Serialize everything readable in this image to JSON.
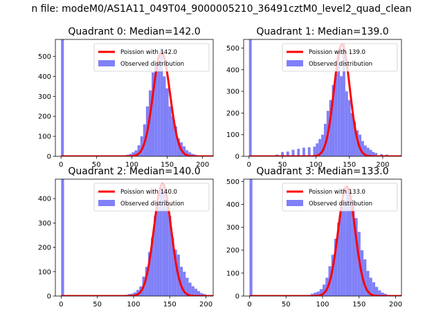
{
  "figure": {
    "suptitle": "n file: modeM0/AS1A11_049T04_9000005210_36491cztM0_level2_quad_clean"
  },
  "chart_data": [
    {
      "type": "bar",
      "title": "Quadrant 0: Median=142.0",
      "xlabel": "",
      "ylabel": "",
      "xlim": [
        -8,
        215
      ],
      "ylim": [
        0,
        585
      ],
      "xticks": [
        0,
        50,
        100,
        150,
        200
      ],
      "yticks": [
        0,
        100,
        200,
        300,
        400,
        500
      ],
      "legend_position": "top-right",
      "bar_color": "#8080f8",
      "bin_width": 4,
      "legend": {
        "poisson_label": "Poission with 142.0",
        "observed_label": "Observed distribution"
      },
      "poisson": {
        "lambda": 142.0,
        "peak": 522,
        "color": "#ff0000"
      },
      "histogram": {
        "x": [
          0,
          84,
          88,
          92,
          96,
          100,
          104,
          108,
          112,
          116,
          120,
          124,
          128,
          132,
          136,
          140,
          144,
          148,
          152,
          156,
          160,
          164,
          168,
          172,
          176,
          180,
          184,
          188,
          192,
          196,
          200,
          204
        ],
        "values": [
          585,
          2,
          3,
          8,
          12,
          20,
          30,
          55,
          100,
          160,
          250,
          330,
          420,
          460,
          480,
          540,
          400,
          340,
          250,
          200,
          150,
          90,
          70,
          50,
          30,
          20,
          12,
          8,
          5,
          3,
          2,
          1
        ]
      }
    },
    {
      "type": "bar",
      "title": "Quadrant 1: Median=139.0",
      "xlabel": "",
      "ylabel": "",
      "xlim": [
        -8,
        228
      ],
      "ylim": [
        0,
        540
      ],
      "xticks": [
        0,
        50,
        100,
        150,
        200
      ],
      "yticks": [
        0,
        100,
        200,
        300,
        400,
        500
      ],
      "legend_position": "top-right",
      "bar_color": "#8080f8",
      "bin_width": 4,
      "legend": {
        "poisson_label": "Poission with 139.0",
        "observed_label": "Observed distribution"
      },
      "poisson": {
        "lambda": 139.0,
        "peak": 517,
        "color": "#ff0000"
      },
      "histogram": {
        "x": [
          0,
          40,
          48,
          56,
          64,
          72,
          80,
          88,
          96,
          100,
          104,
          108,
          112,
          116,
          120,
          124,
          128,
          132,
          136,
          140,
          144,
          148,
          152,
          156,
          160,
          164,
          168,
          172,
          176,
          180,
          184,
          188,
          196,
          204,
          212,
          220
        ],
        "values": [
          540,
          8,
          20,
          22,
          30,
          35,
          40,
          42,
          45,
          60,
          80,
          100,
          150,
          210,
          260,
          330,
          380,
          480,
          370,
          520,
          300,
          260,
          200,
          160,
          120,
          100,
          70,
          50,
          40,
          30,
          20,
          15,
          10,
          8,
          5,
          3
        ]
      }
    },
    {
      "type": "bar",
      "title": "Quadrant 2: Median=140.0",
      "xlabel": "",
      "ylabel": "",
      "xlim": [
        -8,
        210
      ],
      "ylim": [
        0,
        480
      ],
      "xticks": [
        0,
        50,
        100,
        150,
        200
      ],
      "yticks": [
        0,
        100,
        200,
        300,
        400
      ],
      "legend_position": "top-right",
      "bar_color": "#8080f8",
      "bin_width": 4,
      "legend": {
        "poisson_label": "Poission with 140.0",
        "observed_label": "Observed distribution"
      },
      "poisson": {
        "lambda": 140.0,
        "peak": 461,
        "color": "#ff0000"
      },
      "histogram": {
        "x": [
          0,
          84,
          88,
          92,
          96,
          100,
          104,
          108,
          112,
          116,
          120,
          124,
          128,
          132,
          136,
          140,
          144,
          148,
          152,
          156,
          160,
          164,
          168,
          172,
          176,
          180,
          184,
          188,
          192,
          196,
          200
        ],
        "values": [
          480,
          3,
          5,
          8,
          10,
          15,
          25,
          40,
          80,
          120,
          180,
          240,
          330,
          380,
          450,
          460,
          400,
          330,
          240,
          190,
          170,
          120,
          100,
          75,
          55,
          40,
          30,
          20,
          12,
          8,
          4
        ]
      }
    },
    {
      "type": "bar",
      "title": "Quadrant 3: Median=133.0",
      "xlabel": "",
      "ylabel": "",
      "xlim": [
        -8,
        208
      ],
      "ylim": [
        0,
        510
      ],
      "xticks": [
        0,
        50,
        100,
        150,
        200
      ],
      "yticks": [
        0,
        100,
        200,
        300,
        400,
        500
      ],
      "legend_position": "top-right",
      "bar_color": "#8080f8",
      "bin_width": 4,
      "legend": {
        "poisson_label": "Poission with 133.0",
        "observed_label": "Observed distribution"
      },
      "poisson": {
        "lambda": 133.0,
        "peak": 478,
        "color": "#ff0000"
      },
      "histogram": {
        "x": [
          0,
          76,
          80,
          84,
          88,
          92,
          96,
          100,
          104,
          108,
          112,
          116,
          120,
          124,
          128,
          132,
          136,
          140,
          144,
          148,
          152,
          156,
          160,
          164,
          168,
          172,
          176,
          180,
          184,
          188,
          192
        ],
        "values": [
          510,
          3,
          5,
          10,
          15,
          20,
          30,
          50,
          80,
          130,
          180,
          250,
          320,
          390,
          420,
          470,
          460,
          420,
          340,
          280,
          200,
          160,
          110,
          80,
          60,
          40,
          25,
          15,
          10,
          5,
          3
        ]
      }
    }
  ]
}
